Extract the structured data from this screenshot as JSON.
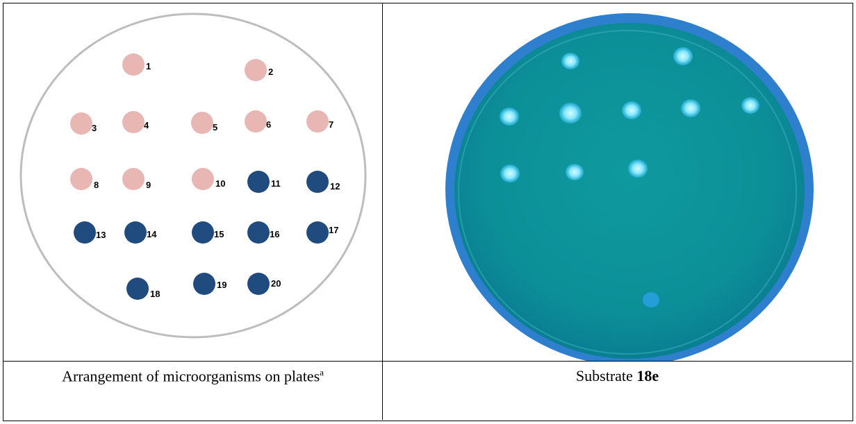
{
  "left_panel": {
    "caption_text": "Arrangement of microorganisms on plates",
    "caption_sup": "a",
    "colonies": [
      {
        "label": "1",
        "color": "pink"
      },
      {
        "label": "2",
        "color": "pink"
      },
      {
        "label": "3",
        "color": "pink"
      },
      {
        "label": "4",
        "color": "pink"
      },
      {
        "label": "5",
        "color": "pink"
      },
      {
        "label": "6",
        "color": "pink"
      },
      {
        "label": "7",
        "color": "pink"
      },
      {
        "label": "8",
        "color": "pink"
      },
      {
        "label": "9",
        "color": "pink"
      },
      {
        "label": "10",
        "color": "pink"
      },
      {
        "label": "11",
        "color": "blue"
      },
      {
        "label": "12",
        "color": "blue"
      },
      {
        "label": "13",
        "color": "blue"
      },
      {
        "label": "14",
        "color": "blue"
      },
      {
        "label": "15",
        "color": "blue"
      },
      {
        "label": "16",
        "color": "blue"
      },
      {
        "label": "17",
        "color": "blue"
      },
      {
        "label": "18",
        "color": "blue"
      },
      {
        "label": "19",
        "color": "blue"
      },
      {
        "label": "20",
        "color": "blue"
      }
    ]
  },
  "right_panel": {
    "caption_prefix": "Substrate ",
    "caption_bold": "18e"
  },
  "colors": {
    "pink": "#e8b7b3",
    "blue": "#1f4b7e",
    "plate_outline": "#bdbdbd",
    "agar": "#0f9aa0",
    "agar_rim": "#2d7fc4",
    "fluor": "#7fe6ff"
  }
}
